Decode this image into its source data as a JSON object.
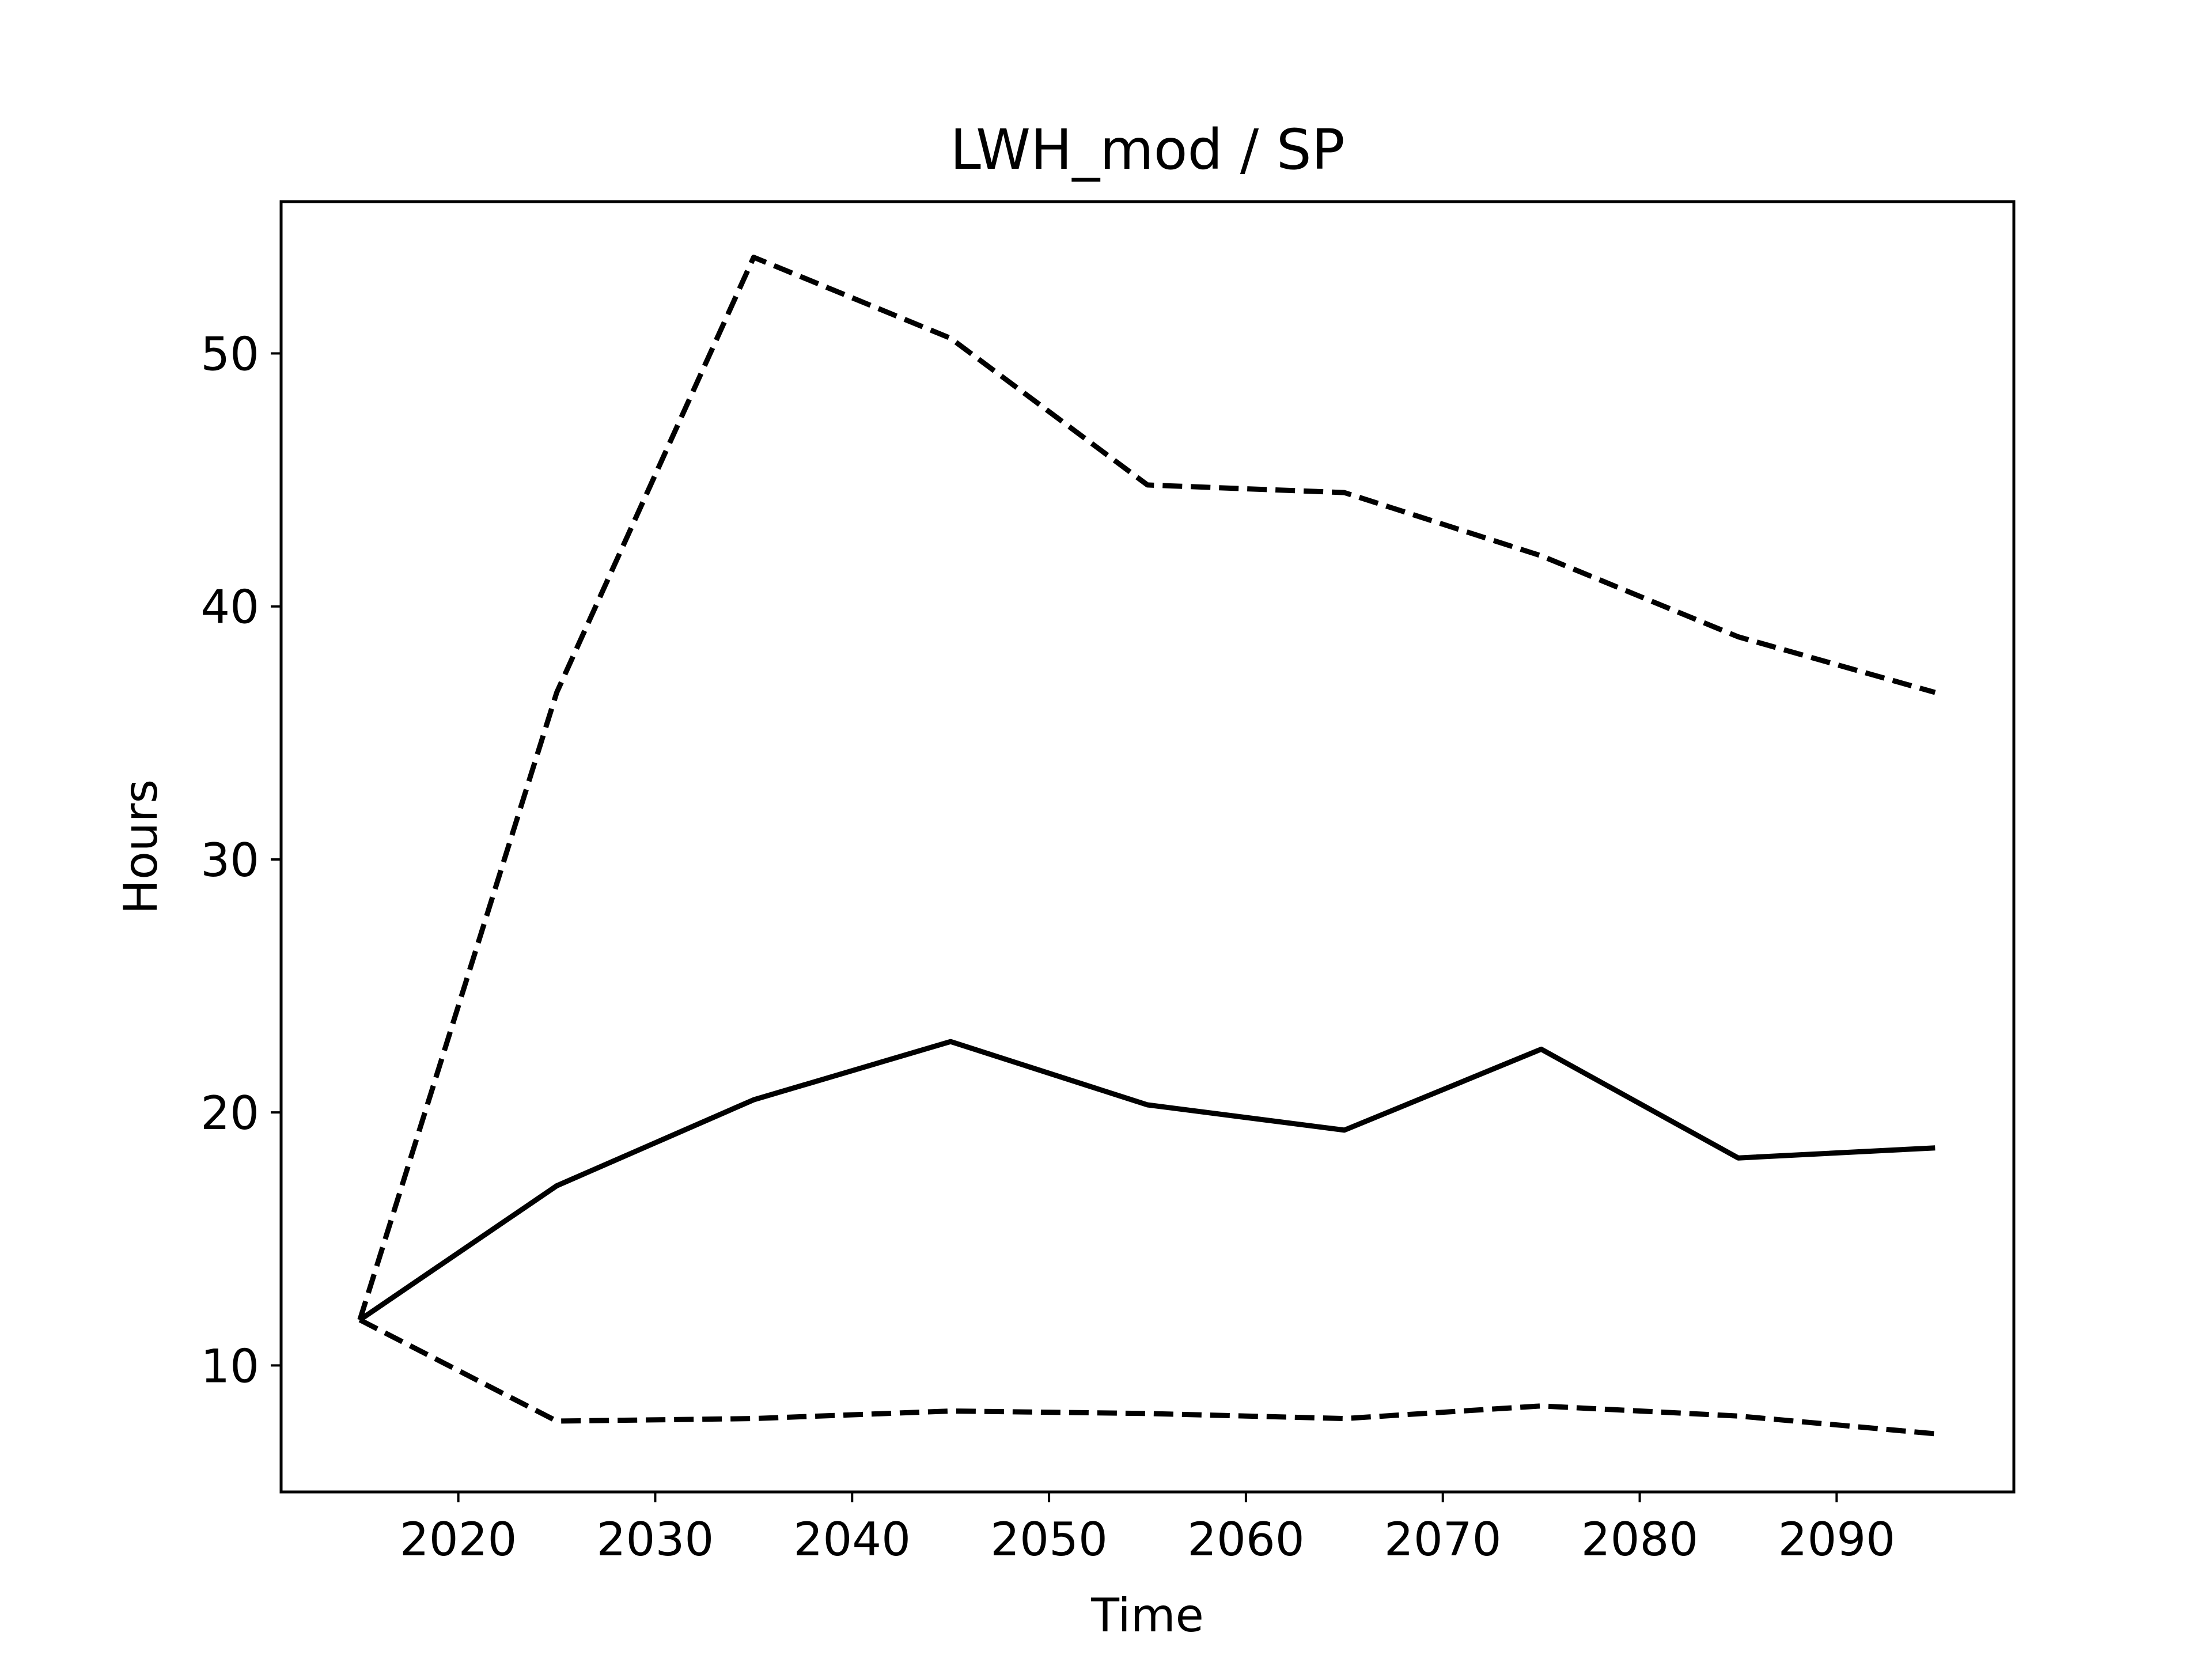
{
  "chart_data": {
    "type": "line",
    "title": "LWH_mod / SP",
    "xlabel": "Time",
    "ylabel": "Hours",
    "x": [
      2015,
      2025,
      2035,
      2045,
      2055,
      2065,
      2075,
      2085,
      2095
    ],
    "series": [
      {
        "style": "solid",
        "color": "#000000",
        "values": [
          11.8,
          17.1,
          20.5,
          22.8,
          20.3,
          19.3,
          22.5,
          18.2,
          18.6
        ]
      },
      {
        "style": "dashed",
        "color": "#000000",
        "values": [
          11.8,
          36.6,
          53.8,
          50.6,
          44.8,
          44.5,
          42.0,
          38.8,
          36.6
        ]
      },
      {
        "style": "dashed",
        "color": "#000000",
        "values": [
          11.8,
          7.8,
          7.9,
          8.2,
          8.1,
          7.9,
          8.4,
          8.0,
          7.3
        ]
      }
    ],
    "xlim": [
      2011,
      2099
    ],
    "ylim": [
      5,
      56
    ],
    "xticks": [
      2020,
      2030,
      2040,
      2050,
      2060,
      2070,
      2080,
      2090
    ],
    "yticks": [
      10,
      20,
      30,
      40,
      50
    ],
    "grid": false,
    "legend": false
  }
}
